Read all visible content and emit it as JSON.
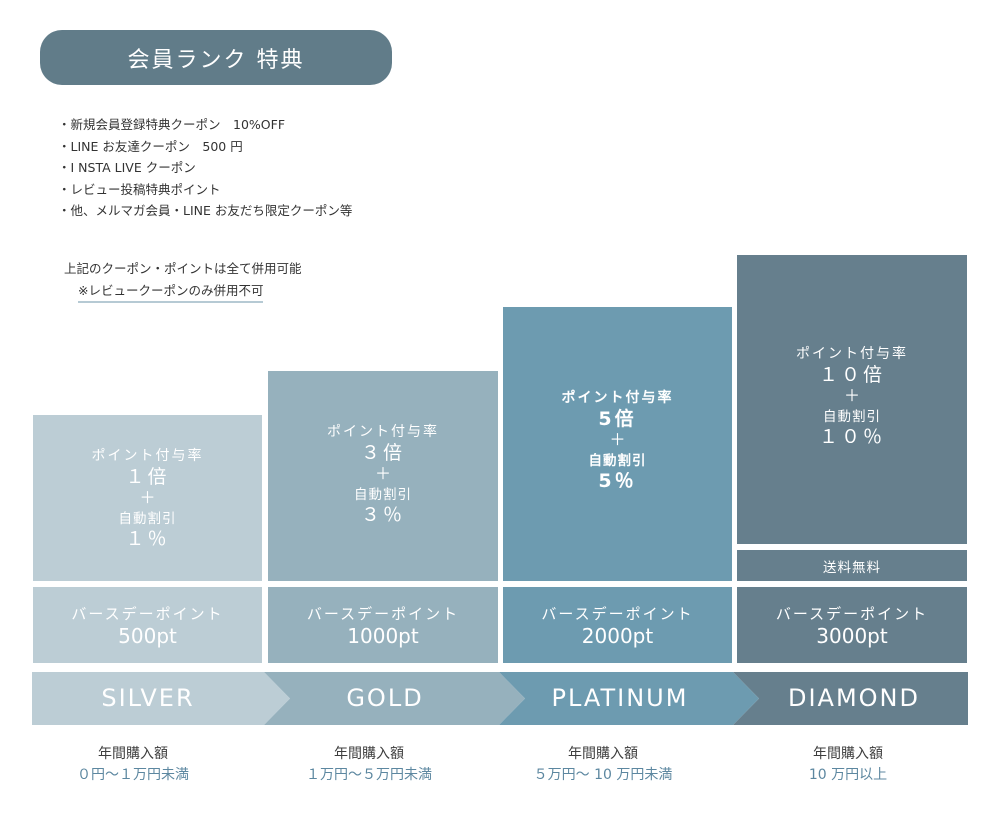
{
  "title": "会員ランク 特典",
  "benefits": [
    "新規会員登録特典クーポン　10%OFF",
    "LINE お友達クーポン　500 円",
    "I NSTA LIVE クーポン",
    "レビュー投稿特典ポイント",
    "他、メルマガ会員・LINE お友だち限定クーポン等"
  ],
  "note": {
    "main": "上記のクーポン・ポイントは全て併用可能",
    "sub": "※レビュークーポンのみ併用不可"
  },
  "ranks": [
    {
      "name": "SILVER",
      "point_label": "ポイント付与率",
      "point_rate": "１倍",
      "plus": "＋",
      "discount_label": "自動割引",
      "discount": "１％",
      "birthday_label": "バースデーポイント",
      "birthday_points": "500pt",
      "annual_label": "年間購入額",
      "annual_range": "０円〜１万円未満",
      "color": "#bccdd5"
    },
    {
      "name": "GOLD",
      "point_label": "ポイント付与率",
      "point_rate": "３倍",
      "plus": "＋",
      "discount_label": "自動割引",
      "discount": "３％",
      "birthday_label": "バースデーポイント",
      "birthday_points": "1000pt",
      "annual_label": "年間購入額",
      "annual_range": "１万円〜５万円未満",
      "color": "#96b1bd"
    },
    {
      "name": "PLATINUM",
      "point_label": "ポイント付与率",
      "point_rate": "5倍",
      "plus": "＋",
      "discount_label": "自動割引",
      "discount": "5％",
      "birthday_label": "バースデーポイント",
      "birthday_points": "2000pt",
      "annual_label": "年間購入額",
      "annual_range": "５万円〜 10 万円未満",
      "color": "#6d9bb0"
    },
    {
      "name": "DIAMOND",
      "point_label": "ポイント付与率",
      "point_rate": "１０倍",
      "plus": "＋",
      "discount_label": "自動割引",
      "discount": "１０％",
      "extra": "送料無料",
      "birthday_label": "バースデーポイント",
      "birthday_points": "3000pt",
      "annual_label": "年間購入額",
      "annual_range": "10 万円以上",
      "color": "#667f8d"
    }
  ]
}
